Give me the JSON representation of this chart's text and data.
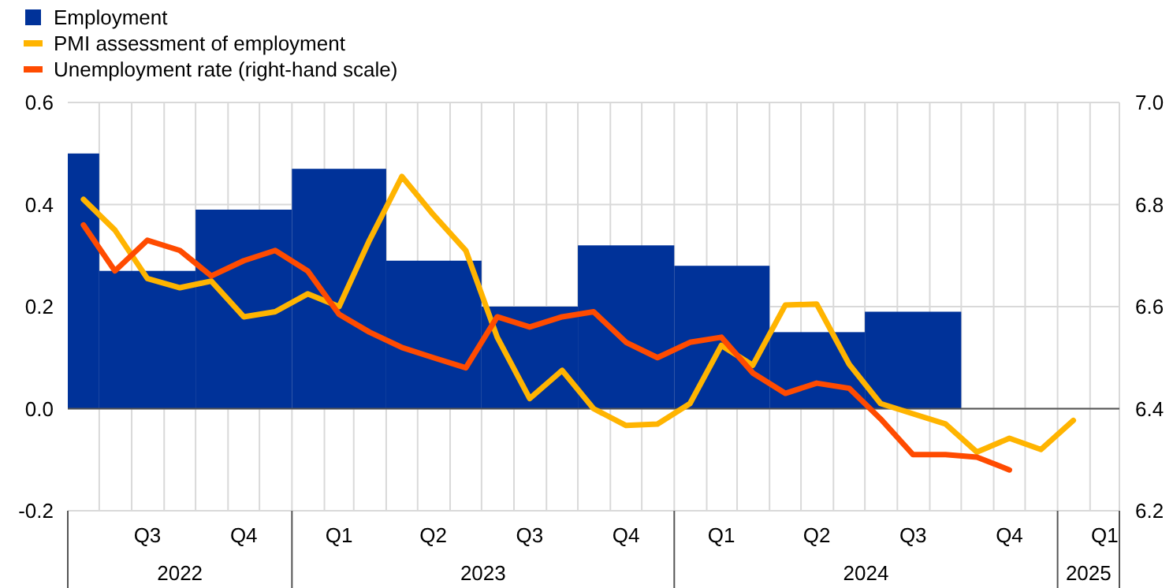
{
  "chart_data": {
    "type": "bar",
    "xlim": [
      "2022-06-01",
      "2025-03-01"
    ],
    "xticks": [
      {
        "value": "2022-07-01",
        "label": null
      },
      {
        "value": "2022-08-01",
        "label": null
      },
      {
        "value": "2022-09-01",
        "label": null
      },
      {
        "value": "2022-10-01",
        "label": null
      },
      {
        "value": "2022-11-01",
        "label": null
      },
      {
        "value": "2022-12-01",
        "label": null
      },
      {
        "value": "2023-01-01",
        "label": null
      },
      {
        "value": "2023-02-01",
        "label": null
      },
      {
        "value": "2023-03-01",
        "label": null
      },
      {
        "value": "2023-04-01",
        "label": null
      },
      {
        "value": "2023-05-01",
        "label": null
      },
      {
        "value": "2023-06-01",
        "label": null
      },
      {
        "value": "2023-07-01",
        "label": null
      },
      {
        "value": "2023-08-01",
        "label": null
      },
      {
        "value": "2023-09-01",
        "label": null
      },
      {
        "value": "2023-10-01",
        "label": null
      },
      {
        "value": "2023-11-01",
        "label": null
      },
      {
        "value": "2023-12-01",
        "label": null
      },
      {
        "value": "2024-01-01",
        "label": null
      },
      {
        "value": "2024-02-01",
        "label": null
      },
      {
        "value": "2024-03-01",
        "label": null
      },
      {
        "value": "2024-04-01",
        "label": null
      },
      {
        "value": "2024-05-01",
        "label": null
      },
      {
        "value": "2024-06-01",
        "label": null
      },
      {
        "value": "2024-07-01",
        "label": null
      },
      {
        "value": "2024-08-01",
        "label": null
      },
      {
        "value": "2024-09-01",
        "label": null
      },
      {
        "value": "2024-10-01",
        "label": null
      },
      {
        "value": "2024-11-01",
        "label": null
      },
      {
        "value": "2024-12-01",
        "label": null
      },
      {
        "value": "2025-01-01",
        "label": null
      },
      {
        "value": "2025-02-01",
        "label": null
      },
      {
        "value": "2022-08-16",
        "label": "Q3"
      },
      {
        "value": "2022-11-16",
        "label": "Q4"
      },
      {
        "value": "2023-02-15",
        "label": "Q1"
      },
      {
        "value": "2023-05-16",
        "label": "Q2"
      },
      {
        "value": "2023-08-16",
        "label": "Q3"
      },
      {
        "value": "2023-11-16",
        "label": "Q4"
      },
      {
        "value": "2024-02-15",
        "label": "Q1"
      },
      {
        "value": "2024-05-16",
        "label": "Q2"
      },
      {
        "value": "2024-08-16",
        "label": "Q3"
      },
      {
        "value": "2024-11-16",
        "label": "Q4"
      },
      {
        "value": "2025-02-15",
        "label": "Q1"
      }
    ],
    "ylim": [
      -0.2,
      0.6
    ],
    "yticks": [
      -0.2,
      {
        "value": 0,
        "label": "0.0"
      },
      0.2,
      0.4,
      0.6
    ],
    "y2lim": [
      6.2,
      7.0
    ],
    "y2ticks": [
      6.2,
      6.4,
      6.6,
      6.8,
      {
        "value": 7.0,
        "label": "7.0"
      }
    ],
    "grid": true,
    "annotations": [
      "2022",
      "2023",
      "2024",
      "2025"
    ],
    "legend": "top left",
    "series": [
      {
        "name": "Employment",
        "color": "#003299",
        "x": [
          "2022-06-16",
          "2022-08-16",
          "2022-11-16",
          "2023-02-15",
          "2023-05-16",
          "2023-08-16",
          "2023-11-16",
          "2024-02-15",
          "2024-05-16",
          "2024-08-16"
        ],
        "values": [
          0.5,
          0.27,
          0.39,
          0.47,
          0.29,
          0.2,
          0.32,
          0.28,
          0.15,
          0.19
        ]
      },
      {
        "name": "PMI assessment of employment",
        "type": "line",
        "color": "#ffb400",
        "x": [
          "2022-06-16",
          "2022-07-16",
          "2022-08-16",
          "2022-09-16",
          "2022-10-16",
          "2022-11-16",
          "2022-12-16",
          "2023-01-16",
          "2023-02-15",
          "2023-03-16",
          "2023-04-16",
          "2023-05-16",
          "2023-06-16",
          "2023-07-16",
          "2023-08-16",
          "2023-09-16",
          "2023-10-16",
          "2023-11-16",
          "2023-12-16",
          "2024-01-16",
          "2024-02-15",
          "2024-03-16",
          "2024-04-16",
          "2024-05-16",
          "2024-06-16",
          "2024-07-16",
          "2024-08-16",
          "2024-09-16",
          "2024-10-16",
          "2024-11-16",
          "2024-12-16",
          "2025-01-16"
        ],
        "values": [
          0.41,
          0.35,
          0.255,
          0.237,
          0.25,
          0.18,
          0.19,
          0.225,
          0.2,
          0.33,
          0.455,
          0.38,
          0.31,
          0.14,
          0.02,
          0.075,
          0.0,
          -0.033,
          -0.03,
          0.01,
          0.124,
          0.085,
          0.203,
          0.205,
          0.087,
          0.01,
          -0.01,
          -0.03,
          -0.085,
          -0.058,
          -0.08,
          -0.023
        ]
      },
      {
        "name": "Unemployment rate (right-hand scale)",
        "type": "line",
        "axis": "y2",
        "color": "#ff4b00",
        "x": [
          "2022-06-16",
          "2022-07-16",
          "2022-08-16",
          "2022-09-16",
          "2022-10-16",
          "2022-11-16",
          "2022-12-16",
          "2023-01-16",
          "2023-02-15",
          "2023-03-16",
          "2023-04-16",
          "2023-05-16",
          "2023-06-16",
          "2023-07-16",
          "2023-08-16",
          "2023-09-16",
          "2023-10-16",
          "2023-11-16",
          "2023-12-16",
          "2024-01-16",
          "2024-02-15",
          "2024-03-16",
          "2024-04-16",
          "2024-05-16",
          "2024-06-16",
          "2024-07-16",
          "2024-08-16",
          "2024-09-16",
          "2024-10-16",
          "2024-11-16"
        ],
        "values": [
          6.76,
          6.67,
          6.73,
          6.71,
          6.66,
          6.69,
          6.71,
          6.67,
          6.585,
          6.55,
          6.52,
          6.5,
          6.48,
          6.58,
          6.56,
          6.58,
          6.59,
          6.53,
          6.5,
          6.53,
          6.54,
          6.47,
          6.43,
          6.45,
          6.44,
          6.38,
          6.31,
          6.31,
          6.305,
          6.28
        ]
      }
    ]
  }
}
